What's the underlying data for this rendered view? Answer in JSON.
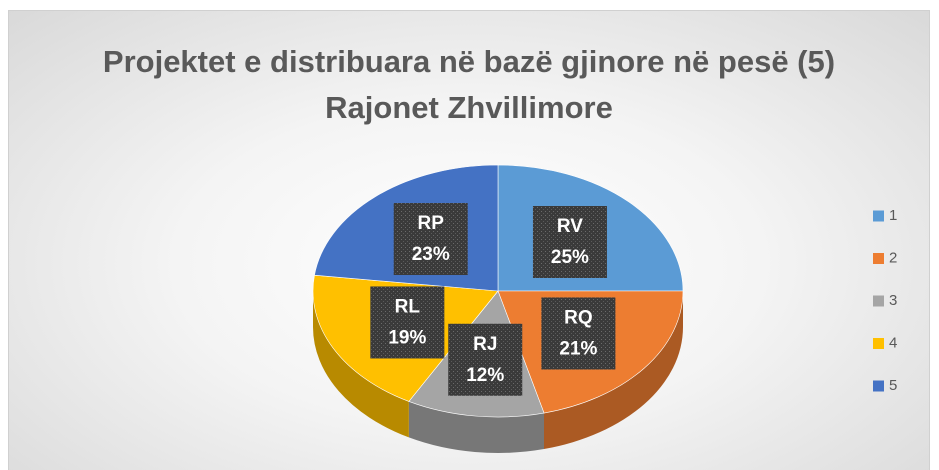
{
  "chart_data": {
    "type": "pie3d",
    "title": "Projektet e distribuara në bazë gjinore në pesë (5) Rajonet Zhvillimore",
    "categories": [
      "1",
      "2",
      "3",
      "4",
      "5"
    ],
    "labels": [
      "RV",
      "RQ",
      "RJ",
      "RL",
      "RP"
    ],
    "values": [
      25,
      21,
      12,
      19,
      23
    ],
    "value_labels": [
      "25%",
      "21%",
      "12%",
      "19%",
      "23%"
    ],
    "colors": [
      "#5b9bd5",
      "#ed7d31",
      "#a5a5a5",
      "#ffc000",
      "#4472c4"
    ],
    "legend": "right"
  }
}
